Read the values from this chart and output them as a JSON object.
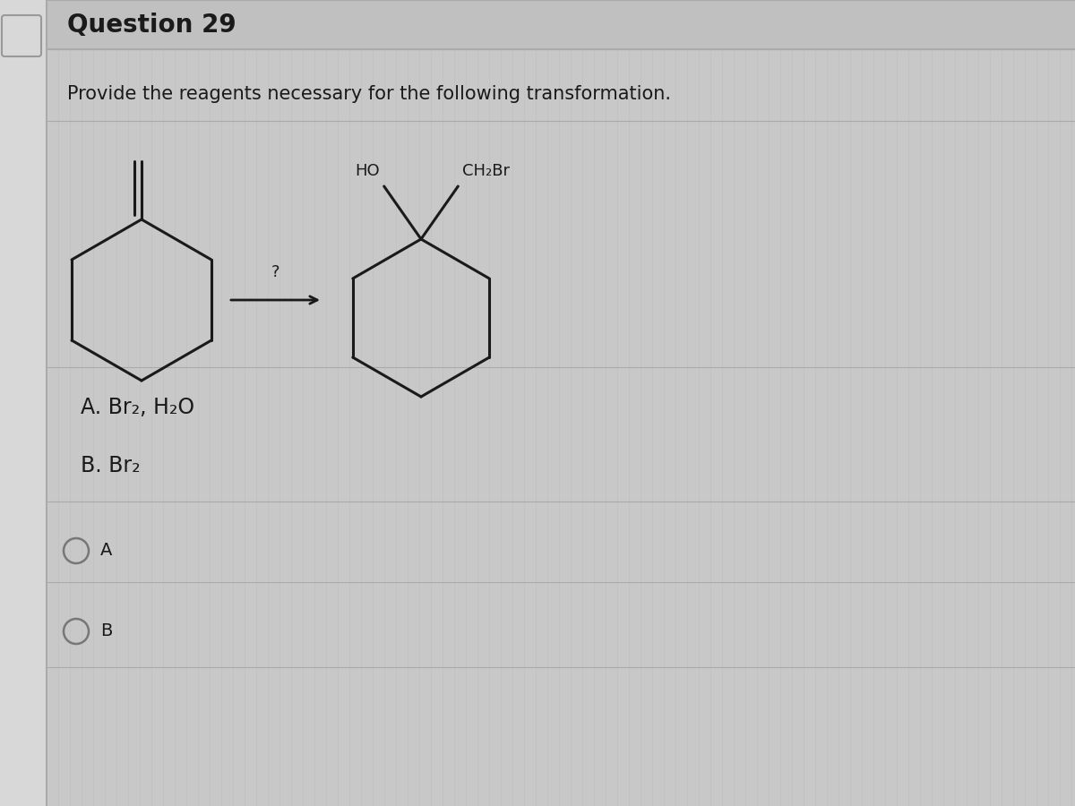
{
  "title": "Question 29",
  "question_text": "Provide the reagents necessary for the following transformation.",
  "arrow_label": "?",
  "option_A": "A. Br₂, H₂O",
  "option_B": "B. Br₂",
  "bg_color": "#c8c8c8",
  "content_bg": "#d4d4d4",
  "title_bg": "#c0c0c0",
  "left_border_color": "#b0b0b0",
  "stripe_color": "#bebebe",
  "text_color": "#1a1a1a",
  "molecule_color": "#1a1a1a",
  "radio_color": "#777777",
  "separator_color": "#aaaaaa",
  "title_fontsize": 20,
  "body_fontsize": 15,
  "option_fontsize": 17,
  "radio_fontsize": 14
}
